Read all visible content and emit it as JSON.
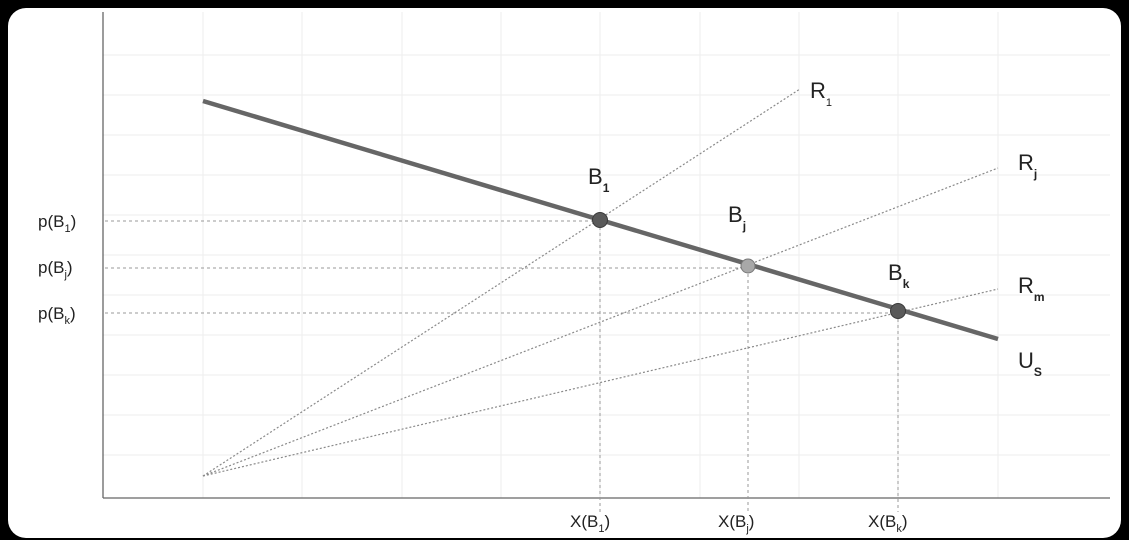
{
  "colors": {
    "background": "#ffffff",
    "outer_frame": "#000000",
    "grid": "#eeeeee",
    "axis": "#666666",
    "budget_line": "#666666",
    "ray": "#8a8a8a",
    "guide": "#9a9a9a",
    "point_dark": "#5a5a5a",
    "point_light": "#a8a8a8"
  },
  "rays": [
    {
      "base": "R",
      "sub": "1"
    },
    {
      "base": "R",
      "sub": "j"
    },
    {
      "base": "R",
      "sub": "m"
    }
  ],
  "budget_line": {
    "base": "U",
    "sub": "S"
  },
  "points": [
    {
      "base": "B",
      "sub": "1"
    },
    {
      "base": "B",
      "sub": "j"
    },
    {
      "base": "B",
      "sub": "k"
    }
  ],
  "y_ticks": [
    {
      "pre": "p(B",
      "sub": "1",
      "post": ")"
    },
    {
      "pre": "p(B",
      "sub": "j",
      "post": ")"
    },
    {
      "pre": "p(B",
      "sub": "k",
      "post": ")"
    }
  ],
  "x_ticks": [
    {
      "pre": "X(B",
      "sub": "1",
      "post": ")"
    },
    {
      "pre": "X(B",
      "sub": "j",
      "post": ")"
    },
    {
      "pre": "X(B",
      "sub": "k",
      "post": ")"
    }
  ]
}
